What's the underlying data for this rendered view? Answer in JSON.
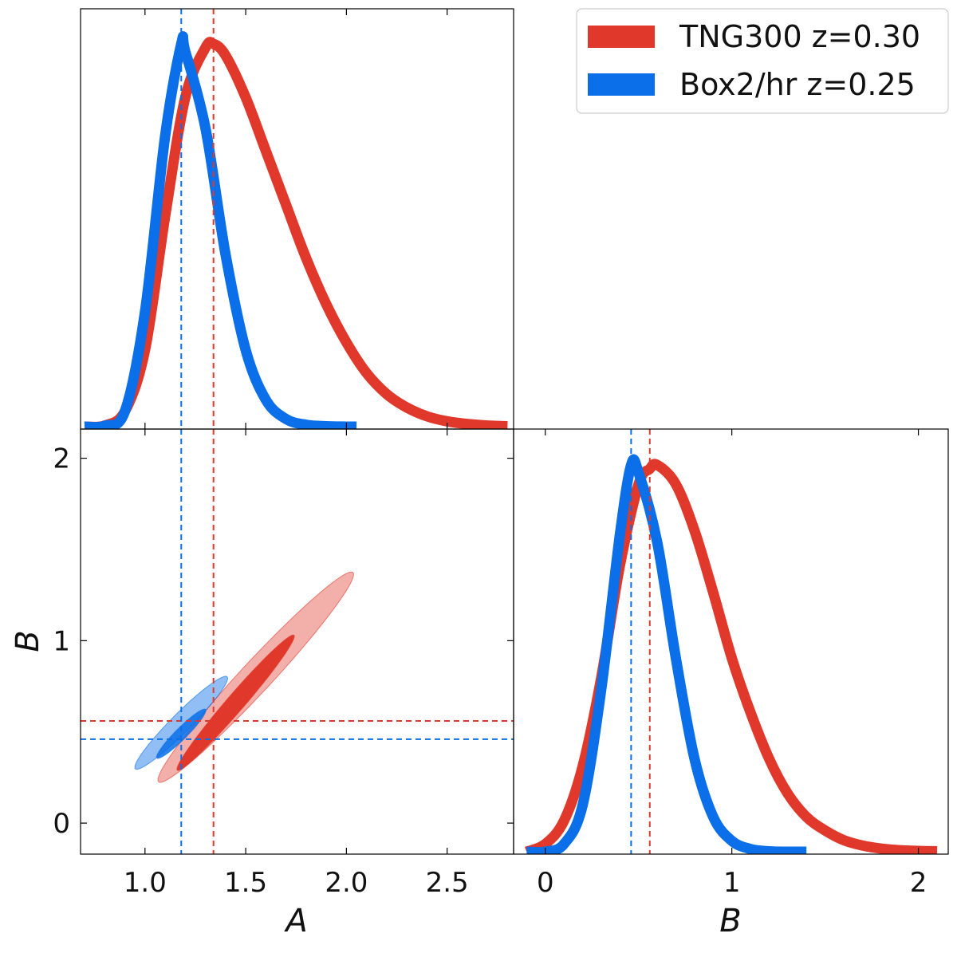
{
  "chart_data": {
    "type": "corner",
    "series": [
      {
        "name": "TNG300 z=0.30",
        "color": "#e0382a",
        "A_best": 1.34,
        "B_best": 0.56,
        "A_marginal": {
          "x": [
            0.7,
            0.8,
            0.9,
            1.0,
            1.1,
            1.2,
            1.3,
            1.34,
            1.4,
            1.5,
            1.6,
            1.7,
            1.8,
            1.9,
            2.0,
            2.1,
            2.2,
            2.3,
            2.4,
            2.5,
            2.6,
            2.7,
            2.8
          ],
          "y": [
            0.0,
            0.003,
            0.04,
            0.2,
            0.55,
            0.86,
            0.99,
            1.0,
            0.97,
            0.86,
            0.72,
            0.58,
            0.44,
            0.32,
            0.22,
            0.14,
            0.085,
            0.05,
            0.027,
            0.014,
            0.007,
            0.003,
            0.001
          ]
        },
        "B_marginal": {
          "x": [
            -0.1,
            0.0,
            0.1,
            0.2,
            0.3,
            0.4,
            0.5,
            0.56,
            0.6,
            0.7,
            0.8,
            0.9,
            1.0,
            1.1,
            1.2,
            1.3,
            1.4,
            1.5,
            1.6,
            1.7,
            1.8,
            1.9,
            2.0,
            2.1
          ],
          "y": [
            0.0,
            0.02,
            0.08,
            0.22,
            0.45,
            0.74,
            0.95,
            0.99,
            1.0,
            0.95,
            0.83,
            0.67,
            0.5,
            0.36,
            0.24,
            0.15,
            0.09,
            0.055,
            0.03,
            0.016,
            0.008,
            0.004,
            0.002,
            0.001
          ]
        },
        "contours": [
          {
            "level": "2sigma",
            "center": [
              1.55,
              0.8
            ],
            "rx": 0.75,
            "ry": 0.08,
            "angle_deg": 50
          },
          {
            "level": "1sigma",
            "center": [
              1.45,
              0.66
            ],
            "rx": 0.47,
            "ry": 0.045,
            "angle_deg": 52
          }
        ]
      },
      {
        "name": "Box2/hr z=0.25",
        "color": "#0a6fe8",
        "A_best": 1.18,
        "B_best": 0.46,
        "A_marginal": {
          "x": [
            0.7,
            0.8,
            0.9,
            1.0,
            1.1,
            1.18,
            1.2,
            1.3,
            1.4,
            1.5,
            1.6,
            1.7,
            1.8,
            1.9,
            2.0,
            2.05
          ],
          "y": [
            0.0,
            0.002,
            0.04,
            0.3,
            0.76,
            1.0,
            0.98,
            0.78,
            0.45,
            0.2,
            0.07,
            0.02,
            0.005,
            0.001,
            0.0,
            0.0
          ]
        },
        "B_marginal": {
          "x": [
            -0.1,
            0.0,
            0.1,
            0.2,
            0.3,
            0.4,
            0.46,
            0.5,
            0.6,
            0.7,
            0.8,
            0.9,
            1.0,
            1.1,
            1.2,
            1.3,
            1.4
          ],
          "y": [
            0.0,
            0.0,
            0.02,
            0.12,
            0.42,
            0.82,
            1.0,
            0.98,
            0.8,
            0.5,
            0.24,
            0.09,
            0.028,
            0.007,
            0.001,
            0.0,
            0.0
          ]
        },
        "contours": [
          {
            "level": "2sigma",
            "center": [
              1.18,
              0.55
            ],
            "rx": 0.34,
            "ry": 0.05,
            "angle_deg": 48
          },
          {
            "level": "1sigma",
            "center": [
              1.18,
              0.49
            ],
            "rx": 0.18,
            "ry": 0.03,
            "angle_deg": 48
          }
        ]
      }
    ],
    "A_axis": {
      "label": "A",
      "lim": [
        0.68,
        2.83
      ],
      "ticks": [
        "1.0",
        "1.5",
        "2.0",
        "2.5"
      ]
    },
    "B_axis": {
      "label": "B",
      "lim": [
        -0.17,
        2.16
      ],
      "ticks": [
        "0",
        "1",
        "2"
      ]
    },
    "legend_position": "top-right"
  }
}
